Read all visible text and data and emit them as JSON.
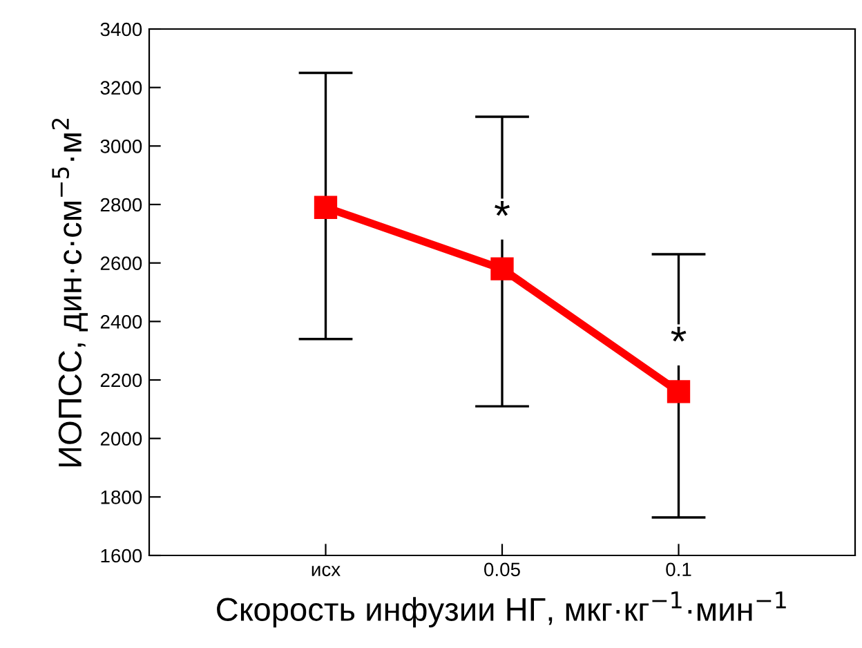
{
  "chart_data": {
    "type": "line",
    "xlabel": "Скорость инфузии НГ, мкг·кг$^{−1}$·мин$^{−1}$",
    "ylabel": "ИОПСС, дин·с·см$^{−5}$·м$^{2}$",
    "categories": [
      "исх",
      "0.05",
      "0.1"
    ],
    "color": "#ff0000",
    "values": [
      2790,
      2580,
      2160
    ],
    "errors": [
      [
        2340,
        3250
      ],
      [
        2110,
        3100
      ],
      [
        1730,
        2630
      ]
    ],
    "ylim": [
      1600,
      3400
    ],
    "yticks": [
      1600,
      1800,
      2000,
      2200,
      2400,
      2600,
      2800,
      3000,
      3200,
      3400
    ],
    "marker": "square",
    "line_style": "solid",
    "grid": false,
    "annotations": [
      {
        "text": "*",
        "x": "0.05",
        "y": 2750
      },
      {
        "text": "*",
        "x": "0.1",
        "y": 2320
      }
    ]
  }
}
